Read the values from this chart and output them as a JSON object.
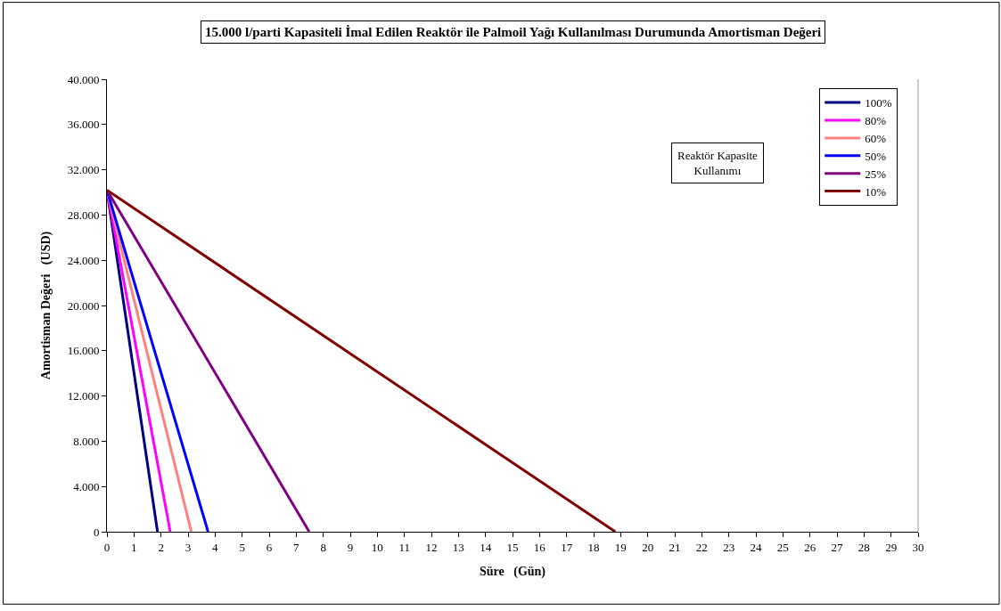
{
  "chart_data": {
    "type": "line",
    "title": "15.000 l/parti Kapasiteli İmal Edilen Reaktör ile Palmoil Yağı Kullanılması Durumunda Amortisman Değeri",
    "xlabel": "Süre   (Gün)",
    "ylabel": "Amortisman Değeri   (USD)",
    "legend_title": "Reaktör Kapasite Kullanımı",
    "series": [
      {
        "name": "100%",
        "color": "#000080",
        "x": [
          0,
          1.87
        ],
        "values": [
          30200,
          0
        ]
      },
      {
        "name": "80%",
        "color": "#ff00ff",
        "x": [
          0,
          2.34
        ],
        "values": [
          30200,
          0
        ]
      },
      {
        "name": "60%",
        "color": "#ff8080",
        "x": [
          0,
          3.12
        ],
        "values": [
          30200,
          0
        ]
      },
      {
        "name": "50%",
        "color": "#0000ff",
        "x": [
          0,
          3.74
        ],
        "values": [
          30200,
          0
        ]
      },
      {
        "name": "25%",
        "color": "#800080",
        "x": [
          0,
          7.48
        ],
        "values": [
          30200,
          0
        ]
      },
      {
        "name": "10%",
        "color": "#800000",
        "x": [
          0,
          18.8
        ],
        "values": [
          30200,
          0
        ]
      }
    ],
    "xlim": [
      0,
      30
    ],
    "xticks": [
      0,
      1,
      2,
      3,
      4,
      5,
      6,
      7,
      8,
      9,
      10,
      11,
      12,
      13,
      14,
      15,
      16,
      17,
      18,
      19,
      20,
      21,
      22,
      23,
      24,
      25,
      26,
      27,
      28,
      29,
      30
    ],
    "ylim": [
      0,
      40000
    ],
    "yticks": [
      {
        "value": 0,
        "label": "0"
      },
      {
        "value": 4000,
        "label": "4.000"
      },
      {
        "value": 8000,
        "label": "8.000"
      },
      {
        "value": 12000,
        "label": "12.000"
      },
      {
        "value": 16000,
        "label": "16.000"
      },
      {
        "value": 20000,
        "label": "20.000"
      },
      {
        "value": 24000,
        "label": "24.000"
      },
      {
        "value": 28000,
        "label": "28.000"
      },
      {
        "value": 32000,
        "label": "32.000"
      },
      {
        "value": 36000,
        "label": "36.000"
      },
      {
        "value": 40000,
        "label": "40.000"
      }
    ],
    "legend": "top right",
    "marker": "none",
    "line_style": "solid"
  }
}
